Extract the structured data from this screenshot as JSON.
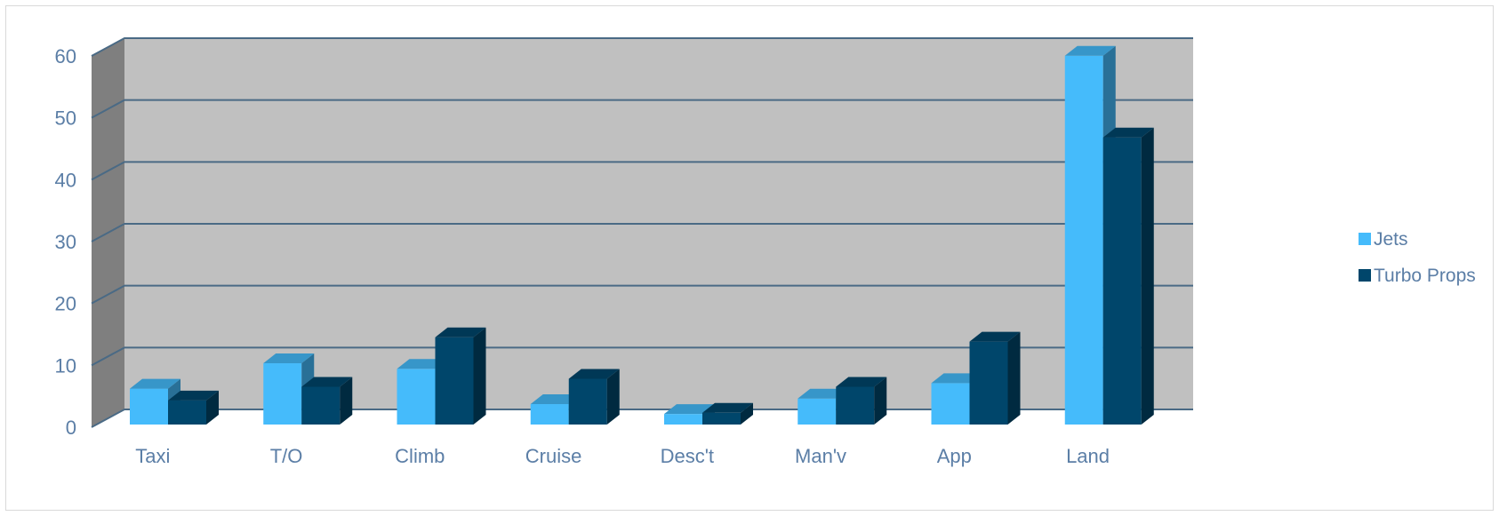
{
  "chart_data": {
    "type": "bar",
    "title": "",
    "xlabel": "",
    "ylabel": "",
    "ylim": [
      0,
      60
    ],
    "yticks": [
      0,
      10,
      20,
      30,
      40,
      50,
      60
    ],
    "grid": true,
    "legend_position": "right",
    "categories": [
      "Taxi",
      "T/O",
      "Climb",
      "Cruise",
      "Desc't",
      "Man'v",
      "App",
      "Land"
    ],
    "series": [
      {
        "name": "Jets",
        "color": "#45bbfb",
        "values": [
          5.8,
          9.9,
          9.0,
          3.3,
          1.7,
          4.2,
          6.7,
          59.6
        ]
      },
      {
        "name": "Turbo Props",
        "color": "#00466b",
        "values": [
          3.9,
          6.1,
          14.1,
          7.4,
          1.9,
          6.1,
          13.4,
          46.4
        ]
      }
    ]
  }
}
